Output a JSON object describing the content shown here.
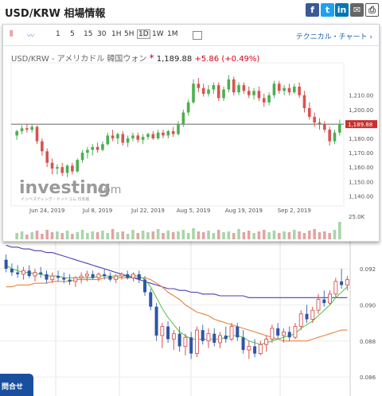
{
  "header": {
    "title": "USD/KRW 相場情報"
  },
  "share": [
    {
      "name": "facebook-icon",
      "glyph": "f",
      "color": "#3b5998"
    },
    {
      "name": "twitter-icon",
      "glyph": "t",
      "color": "#1da1f2"
    },
    {
      "name": "linkedin-icon",
      "glyph": "in",
      "color": "#0077b5"
    },
    {
      "name": "mail-icon",
      "glyph": "✉",
      "color": "#666666"
    }
  ],
  "toolbar": {
    "timeframes": [
      "1",
      "5",
      "15",
      "30",
      "1H",
      "5H",
      "1D",
      "1W",
      "1M"
    ],
    "selected": "1D",
    "technical_link": "テクニカル・チャート ›"
  },
  "quote": {
    "pair": "USD/KRW - アメリカドル 韓国ウォン",
    "star": "*",
    "price": "1,189.88",
    "change": "+5.86",
    "change_pct": "(+0.49%)"
  },
  "watermark": {
    "brand": "investing",
    "suffix": ".com",
    "tagline": "インベスティング・ドットコム 日本版"
  },
  "colors": {
    "up": "#4caf50",
    "down": "#d9534f",
    "upper_price_tag": "#c9302c"
  },
  "contact_button": "問合せ",
  "chart_data": [
    {
      "type": "candlestick",
      "x_tick_labels": [
        "Jun 24, 2019",
        "Jul 8, 2019",
        "Jul 22, 2019",
        "Aug 5, 2019",
        "Aug 19, 2019",
        "Sep 2, 2019"
      ],
      "y_tick_labels": [
        "1,210.00",
        "1,200.00",
        "1,190.00",
        "1,180.00",
        "1,170.00",
        "1,160.00",
        "1,150.00",
        "1,140.00"
      ],
      "ylim": [
        1133,
        1227
      ],
      "current_price_label": "1,189.88",
      "current_price": 1189.88,
      "volume_axis_label": "25.0K",
      "candles": [
        {
          "o": 1182,
          "h": 1186,
          "l": 1179,
          "c": 1185
        },
        {
          "o": 1185,
          "h": 1189,
          "l": 1183,
          "c": 1187
        },
        {
          "o": 1187,
          "h": 1190,
          "l": 1184,
          "c": 1186
        },
        {
          "o": 1186,
          "h": 1190,
          "l": 1184,
          "c": 1188
        },
        {
          "o": 1188,
          "h": 1189,
          "l": 1176,
          "c": 1178
        },
        {
          "o": 1178,
          "h": 1180,
          "l": 1168,
          "c": 1171
        },
        {
          "o": 1171,
          "h": 1173,
          "l": 1160,
          "c": 1163
        },
        {
          "o": 1163,
          "h": 1166,
          "l": 1155,
          "c": 1159
        },
        {
          "o": 1159,
          "h": 1162,
          "l": 1155,
          "c": 1160
        },
        {
          "o": 1160,
          "h": 1163,
          "l": 1154,
          "c": 1156
        },
        {
          "o": 1156,
          "h": 1162,
          "l": 1153,
          "c": 1161
        },
        {
          "o": 1161,
          "h": 1163,
          "l": 1155,
          "c": 1157
        },
        {
          "o": 1157,
          "h": 1166,
          "l": 1156,
          "c": 1165
        },
        {
          "o": 1165,
          "h": 1172,
          "l": 1163,
          "c": 1170
        },
        {
          "o": 1170,
          "h": 1174,
          "l": 1166,
          "c": 1172
        },
        {
          "o": 1172,
          "h": 1176,
          "l": 1168,
          "c": 1174
        },
        {
          "o": 1174,
          "h": 1177,
          "l": 1170,
          "c": 1172
        },
        {
          "o": 1172,
          "h": 1178,
          "l": 1171,
          "c": 1176
        },
        {
          "o": 1176,
          "h": 1184,
          "l": 1175,
          "c": 1182
        },
        {
          "o": 1182,
          "h": 1186,
          "l": 1178,
          "c": 1180
        },
        {
          "o": 1180,
          "h": 1184,
          "l": 1176,
          "c": 1183
        },
        {
          "o": 1183,
          "h": 1185,
          "l": 1175,
          "c": 1177
        },
        {
          "o": 1177,
          "h": 1182,
          "l": 1174,
          "c": 1180
        },
        {
          "o": 1180,
          "h": 1184,
          "l": 1178,
          "c": 1182
        },
        {
          "o": 1182,
          "h": 1184,
          "l": 1177,
          "c": 1179
        },
        {
          "o": 1179,
          "h": 1183,
          "l": 1176,
          "c": 1181
        },
        {
          "o": 1181,
          "h": 1184,
          "l": 1179,
          "c": 1183
        },
        {
          "o": 1183,
          "h": 1185,
          "l": 1179,
          "c": 1180
        },
        {
          "o": 1180,
          "h": 1186,
          "l": 1179,
          "c": 1184
        },
        {
          "o": 1184,
          "h": 1186,
          "l": 1180,
          "c": 1182
        },
        {
          "o": 1182,
          "h": 1186,
          "l": 1180,
          "c": 1185
        },
        {
          "o": 1185,
          "h": 1188,
          "l": 1181,
          "c": 1183
        },
        {
          "o": 1183,
          "h": 1192,
          "l": 1182,
          "c": 1190
        },
        {
          "o": 1190,
          "h": 1200,
          "l": 1188,
          "c": 1198
        },
        {
          "o": 1198,
          "h": 1207,
          "l": 1196,
          "c": 1205
        },
        {
          "o": 1205,
          "h": 1221,
          "l": 1204,
          "c": 1218
        },
        {
          "o": 1218,
          "h": 1222,
          "l": 1212,
          "c": 1215
        },
        {
          "o": 1215,
          "h": 1218,
          "l": 1209,
          "c": 1211
        },
        {
          "o": 1211,
          "h": 1217,
          "l": 1209,
          "c": 1214
        },
        {
          "o": 1214,
          "h": 1219,
          "l": 1211,
          "c": 1217
        },
        {
          "o": 1217,
          "h": 1219,
          "l": 1206,
          "c": 1208
        },
        {
          "o": 1208,
          "h": 1216,
          "l": 1206,
          "c": 1214
        },
        {
          "o": 1214,
          "h": 1224,
          "l": 1212,
          "c": 1221
        },
        {
          "o": 1221,
          "h": 1223,
          "l": 1210,
          "c": 1212
        },
        {
          "o": 1212,
          "h": 1219,
          "l": 1210,
          "c": 1217
        },
        {
          "o": 1217,
          "h": 1219,
          "l": 1211,
          "c": 1213
        },
        {
          "o": 1213,
          "h": 1216,
          "l": 1208,
          "c": 1210
        },
        {
          "o": 1210,
          "h": 1215,
          "l": 1207,
          "c": 1213
        },
        {
          "o": 1213,
          "h": 1216,
          "l": 1206,
          "c": 1208
        },
        {
          "o": 1208,
          "h": 1211,
          "l": 1202,
          "c": 1205
        },
        {
          "o": 1205,
          "h": 1212,
          "l": 1203,
          "c": 1210
        },
        {
          "o": 1210,
          "h": 1220,
          "l": 1208,
          "c": 1218
        },
        {
          "o": 1218,
          "h": 1220,
          "l": 1211,
          "c": 1213
        },
        {
          "o": 1213,
          "h": 1217,
          "l": 1210,
          "c": 1215
        },
        {
          "o": 1215,
          "h": 1218,
          "l": 1210,
          "c": 1212
        },
        {
          "o": 1212,
          "h": 1218,
          "l": 1211,
          "c": 1216
        },
        {
          "o": 1216,
          "h": 1219,
          "l": 1208,
          "c": 1210
        },
        {
          "o": 1210,
          "h": 1213,
          "l": 1198,
          "c": 1201
        },
        {
          "o": 1201,
          "h": 1205,
          "l": 1193,
          "c": 1195
        },
        {
          "o": 1195,
          "h": 1198,
          "l": 1188,
          "c": 1191
        },
        {
          "o": 1191,
          "h": 1194,
          "l": 1186,
          "c": 1190
        },
        {
          "o": 1190,
          "h": 1192,
          "l": 1184,
          "c": 1186
        },
        {
          "o": 1186,
          "h": 1188,
          "l": 1175,
          "c": 1178
        },
        {
          "o": 1178,
          "h": 1186,
          "l": 1176,
          "c": 1184
        },
        {
          "o": 1184,
          "h": 1193,
          "l": 1182,
          "c": 1190
        }
      ],
      "volumes": [
        8,
        10,
        6,
        9,
        11,
        7,
        12,
        9,
        10,
        8,
        11,
        7,
        9,
        12,
        8,
        10,
        9,
        11,
        8,
        13,
        9,
        10,
        7,
        12,
        8,
        11,
        9,
        10,
        13,
        8,
        11,
        9,
        10,
        12,
        8,
        14,
        10,
        9,
        11,
        8,
        12,
        9,
        10,
        8,
        13,
        9,
        11,
        8,
        10,
        12,
        9,
        11,
        8,
        10,
        9,
        12,
        10,
        8,
        11,
        13,
        9,
        10,
        8,
        12,
        22
      ]
    },
    {
      "type": "candlestick",
      "y_tick_labels": [
        "0.092",
        "0.090",
        "0.088",
        "0.086"
      ],
      "ylim": [
        0.0853,
        0.0935
      ],
      "candles": [
        {
          "o": 0.0925,
          "h": 0.0928,
          "l": 0.0918,
          "c": 0.092
        },
        {
          "o": 0.092,
          "h": 0.0923,
          "l": 0.0916,
          "c": 0.0918
        },
        {
          "o": 0.0918,
          "h": 0.0922,
          "l": 0.0915,
          "c": 0.0917
        },
        {
          "o": 0.0917,
          "h": 0.0921,
          "l": 0.0914,
          "c": 0.0919
        },
        {
          "o": 0.0919,
          "h": 0.0922,
          "l": 0.0915,
          "c": 0.0916
        },
        {
          "o": 0.0916,
          "h": 0.092,
          "l": 0.0913,
          "c": 0.0918
        },
        {
          "o": 0.0918,
          "h": 0.0921,
          "l": 0.0915,
          "c": 0.0917
        },
        {
          "o": 0.0917,
          "h": 0.0919,
          "l": 0.0912,
          "c": 0.0914
        },
        {
          "o": 0.0914,
          "h": 0.0918,
          "l": 0.0912,
          "c": 0.0916
        },
        {
          "o": 0.0916,
          "h": 0.0919,
          "l": 0.0913,
          "c": 0.0915
        },
        {
          "o": 0.0915,
          "h": 0.0918,
          "l": 0.0912,
          "c": 0.0914
        },
        {
          "o": 0.0914,
          "h": 0.0917,
          "l": 0.0911,
          "c": 0.0913
        },
        {
          "o": 0.0913,
          "h": 0.0916,
          "l": 0.091,
          "c": 0.0915
        },
        {
          "o": 0.0915,
          "h": 0.0918,
          "l": 0.0912,
          "c": 0.0916
        },
        {
          "o": 0.0916,
          "h": 0.0919,
          "l": 0.0913,
          "c": 0.0917
        },
        {
          "o": 0.0917,
          "h": 0.0919,
          "l": 0.0914,
          "c": 0.0915
        },
        {
          "o": 0.0915,
          "h": 0.0918,
          "l": 0.0913,
          "c": 0.0917
        },
        {
          "o": 0.0917,
          "h": 0.092,
          "l": 0.0914,
          "c": 0.0916
        },
        {
          "o": 0.0916,
          "h": 0.0918,
          "l": 0.0913,
          "c": 0.0914
        },
        {
          "o": 0.0914,
          "h": 0.0917,
          "l": 0.0912,
          "c": 0.0916
        },
        {
          "o": 0.0916,
          "h": 0.0918,
          "l": 0.0914,
          "c": 0.0917
        },
        {
          "o": 0.0917,
          "h": 0.0919,
          "l": 0.0914,
          "c": 0.0915
        },
        {
          "o": 0.0915,
          "h": 0.0918,
          "l": 0.0913,
          "c": 0.0917
        },
        {
          "o": 0.0917,
          "h": 0.0919,
          "l": 0.0912,
          "c": 0.0914
        },
        {
          "o": 0.0914,
          "h": 0.0916,
          "l": 0.0905,
          "c": 0.0907
        },
        {
          "o": 0.0907,
          "h": 0.0909,
          "l": 0.0897,
          "c": 0.0899
        },
        {
          "o": 0.0899,
          "h": 0.0901,
          "l": 0.088,
          "c": 0.0883
        },
        {
          "o": 0.0883,
          "h": 0.089,
          "l": 0.0876,
          "c": 0.0888
        },
        {
          "o": 0.0888,
          "h": 0.0891,
          "l": 0.0879,
          "c": 0.0881
        },
        {
          "o": 0.0881,
          "h": 0.0886,
          "l": 0.0875,
          "c": 0.0884
        },
        {
          "o": 0.0884,
          "h": 0.0888,
          "l": 0.0874,
          "c": 0.0877
        },
        {
          "o": 0.0877,
          "h": 0.0884,
          "l": 0.0872,
          "c": 0.0882
        },
        {
          "o": 0.0882,
          "h": 0.0885,
          "l": 0.087,
          "c": 0.0873
        },
        {
          "o": 0.0873,
          "h": 0.0888,
          "l": 0.0871,
          "c": 0.0886
        },
        {
          "o": 0.0886,
          "h": 0.0889,
          "l": 0.0878,
          "c": 0.088
        },
        {
          "o": 0.088,
          "h": 0.0887,
          "l": 0.0876,
          "c": 0.0884
        },
        {
          "o": 0.0884,
          "h": 0.0887,
          "l": 0.0877,
          "c": 0.0879
        },
        {
          "o": 0.0879,
          "h": 0.0885,
          "l": 0.0876,
          "c": 0.0883
        },
        {
          "o": 0.0883,
          "h": 0.0888,
          "l": 0.0879,
          "c": 0.0881
        },
        {
          "o": 0.0881,
          "h": 0.089,
          "l": 0.088,
          "c": 0.0888
        },
        {
          "o": 0.0888,
          "h": 0.089,
          "l": 0.088,
          "c": 0.0882
        },
        {
          "o": 0.0882,
          "h": 0.0886,
          "l": 0.0873,
          "c": 0.0875
        },
        {
          "o": 0.0875,
          "h": 0.088,
          "l": 0.087,
          "c": 0.0877
        },
        {
          "o": 0.0877,
          "h": 0.0881,
          "l": 0.0871,
          "c": 0.0873
        },
        {
          "o": 0.0873,
          "h": 0.088,
          "l": 0.0872,
          "c": 0.0878
        },
        {
          "o": 0.0878,
          "h": 0.0883,
          "l": 0.0874,
          "c": 0.0881
        },
        {
          "o": 0.0881,
          "h": 0.0889,
          "l": 0.0879,
          "c": 0.0887
        },
        {
          "o": 0.0887,
          "h": 0.089,
          "l": 0.0881,
          "c": 0.0883
        },
        {
          "o": 0.0883,
          "h": 0.0887,
          "l": 0.0879,
          "c": 0.0885
        },
        {
          "o": 0.0885,
          "h": 0.0888,
          "l": 0.088,
          "c": 0.0882
        },
        {
          "o": 0.0882,
          "h": 0.089,
          "l": 0.0881,
          "c": 0.0888
        },
        {
          "o": 0.0888,
          "h": 0.0897,
          "l": 0.0886,
          "c": 0.0895
        },
        {
          "o": 0.0895,
          "h": 0.09,
          "l": 0.089,
          "c": 0.0892
        },
        {
          "o": 0.0892,
          "h": 0.0899,
          "l": 0.089,
          "c": 0.0897
        },
        {
          "o": 0.0897,
          "h": 0.0906,
          "l": 0.0895,
          "c": 0.0903
        },
        {
          "o": 0.0903,
          "h": 0.0908,
          "l": 0.0899,
          "c": 0.0901
        },
        {
          "o": 0.0901,
          "h": 0.0908,
          "l": 0.09,
          "c": 0.0906
        },
        {
          "o": 0.0906,
          "h": 0.0915,
          "l": 0.0904,
          "c": 0.0913
        },
        {
          "o": 0.0913,
          "h": 0.092,
          "l": 0.0909,
          "c": 0.0911
        },
        {
          "o": 0.0911,
          "h": 0.0916,
          "l": 0.0908,
          "c": 0.0914
        }
      ],
      "ma_fast": [
        0.0922,
        0.092,
        0.0919,
        0.0918,
        0.0918,
        0.0917,
        0.0917,
        0.0916,
        0.0916,
        0.0916,
        0.0915,
        0.0915,
        0.0915,
        0.0915,
        0.0915,
        0.0915,
        0.0916,
        0.0916,
        0.0916,
        0.0916,
        0.0916,
        0.0916,
        0.0916,
        0.0916,
        0.0914,
        0.091,
        0.0904,
        0.0898,
        0.0893,
        0.0889,
        0.0885,
        0.0883,
        0.0881,
        0.0881,
        0.0881,
        0.0881,
        0.0881,
        0.0881,
        0.0882,
        0.0883,
        0.0883,
        0.0882,
        0.088,
        0.0879,
        0.0878,
        0.0879,
        0.088,
        0.0881,
        0.0882,
        0.0883,
        0.0884,
        0.0887,
        0.0889,
        0.0891,
        0.0894,
        0.0897,
        0.09,
        0.0904,
        0.0907,
        0.091
      ],
      "ma_mid": [
        0.091,
        0.091,
        0.0911,
        0.0911,
        0.0911,
        0.0912,
        0.0912,
        0.0912,
        0.0913,
        0.0913,
        0.0913,
        0.0913,
        0.0914,
        0.0914,
        0.0914,
        0.0914,
        0.0914,
        0.0915,
        0.0915,
        0.0915,
        0.0915,
        0.0915,
        0.0915,
        0.0915,
        0.0915,
        0.0914,
        0.0912,
        0.091,
        0.0907,
        0.0905,
        0.0903,
        0.09,
        0.0898,
        0.0896,
        0.0895,
        0.0894,
        0.0892,
        0.0891,
        0.089,
        0.0889,
        0.0888,
        0.0887,
        0.0886,
        0.0885,
        0.0884,
        0.0883,
        0.0882,
        0.0881,
        0.088,
        0.088,
        0.088,
        0.088,
        0.088,
        0.0881,
        0.0882,
        0.0883,
        0.0884,
        0.0885,
        0.0886,
        0.0886
      ],
      "ma_slow": [
        0.0933,
        0.0932,
        0.0932,
        0.0931,
        0.0931,
        0.093,
        0.093,
        0.0929,
        0.0929,
        0.0928,
        0.0927,
        0.0926,
        0.0925,
        0.0924,
        0.0923,
        0.0922,
        0.0921,
        0.092,
        0.0919,
        0.0918,
        0.0917,
        0.0916,
        0.0915,
        0.0914,
        0.0913,
        0.0912,
        0.0911,
        0.091,
        0.0909,
        0.0909,
        0.0908,
        0.0908,
        0.0907,
        0.0907,
        0.0906,
        0.0906,
        0.0906,
        0.0905,
        0.0905,
        0.0905,
        0.0905,
        0.0905,
        0.0904,
        0.0904,
        0.0904,
        0.0904,
        0.0904,
        0.0904,
        0.0904,
        0.0904,
        0.0904,
        0.0904,
        0.0904,
        0.0904,
        0.0904,
        0.0904,
        0.0904,
        0.0904,
        0.0904,
        0.0904
      ]
    }
  ]
}
